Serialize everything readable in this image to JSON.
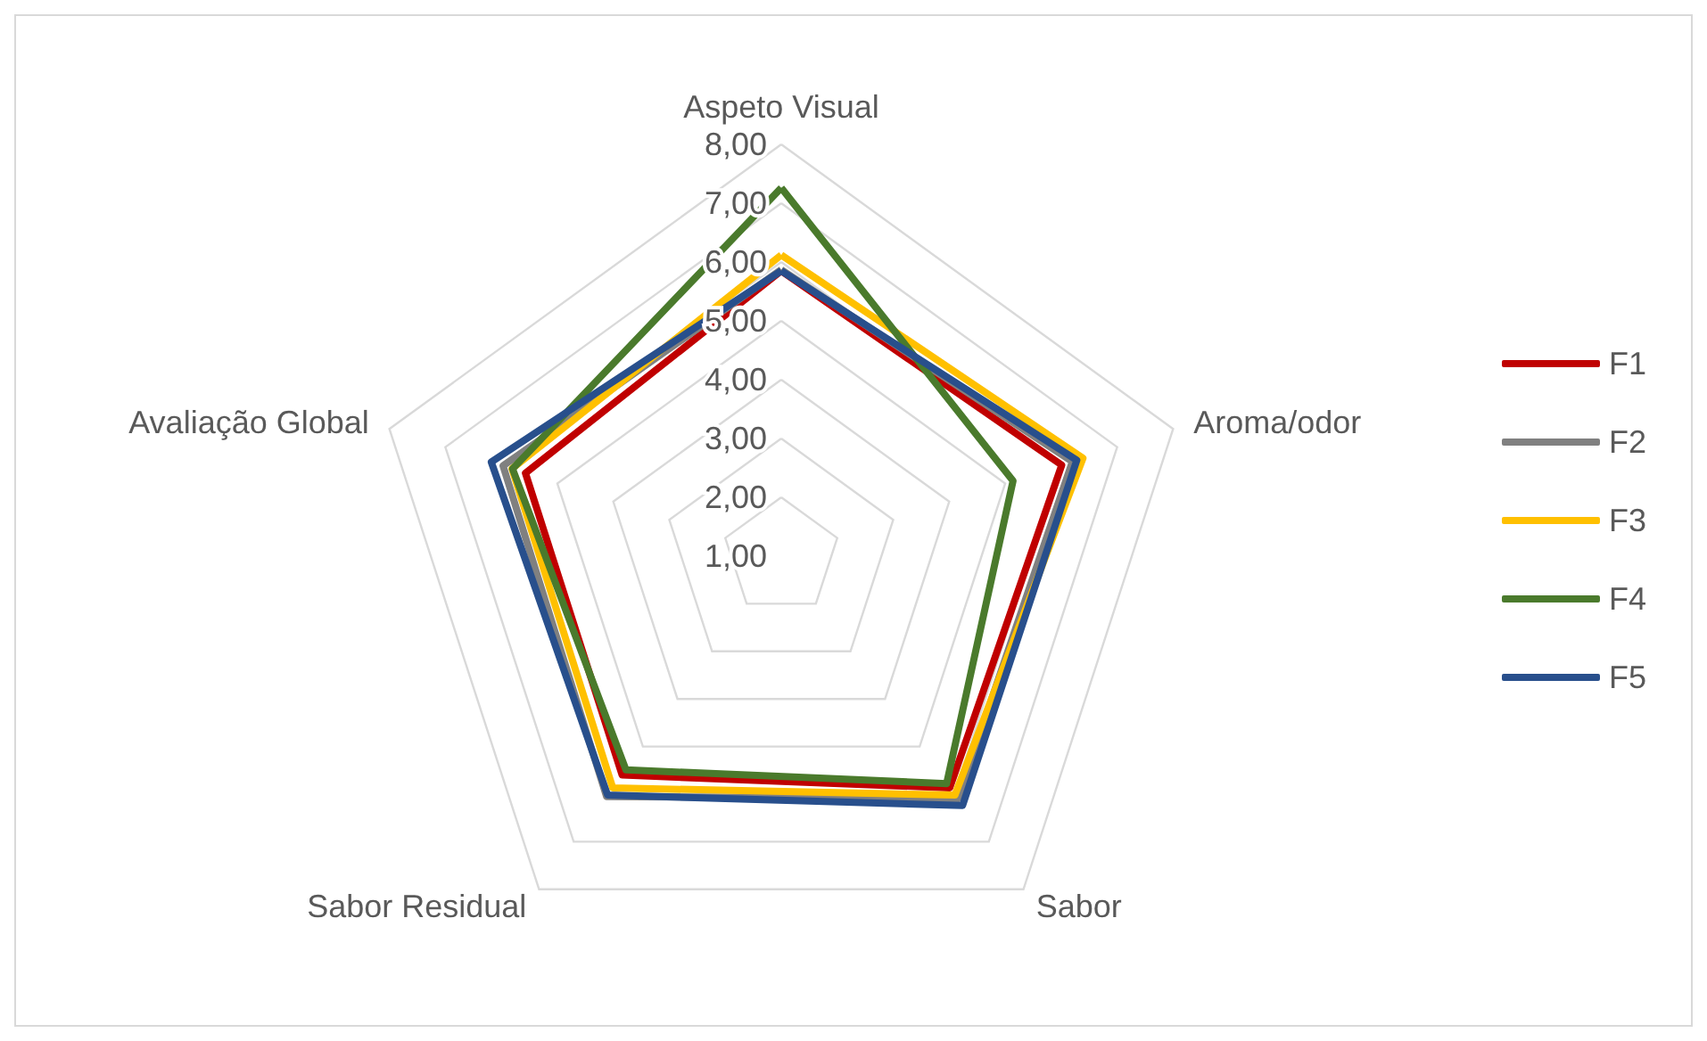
{
  "chart_data": {
    "type": "radar",
    "categories": [
      "Aspeto Visual",
      "Aroma/odor",
      "Sabor",
      "Sabor Residual",
      "Avaliação Global"
    ],
    "series": [
      {
        "name": "F1",
        "color": "#c00000",
        "values": [
          5.85,
          6.01,
          5.87,
          5.6,
          5.57
        ]
      },
      {
        "name": "F2",
        "color": "#808080",
        "values": [
          5.87,
          6.2,
          6.1,
          6.05,
          5.97
        ]
      },
      {
        "name": "F3",
        "color": "#ffc000",
        "values": [
          6.12,
          6.39,
          6.02,
          5.87,
          5.81
        ]
      },
      {
        "name": "F4",
        "color": "#4a7a2c",
        "values": [
          7.26,
          5.14,
          5.78,
          5.49,
          5.8
        ]
      },
      {
        "name": "F5",
        "color": "#284f8c",
        "values": [
          5.85,
          6.28,
          6.24,
          6.02,
          6.18
        ]
      }
    ],
    "ylim": [
      1,
      8
    ],
    "yticks": [
      {
        "value": 1,
        "label": "1,00"
      },
      {
        "value": 2,
        "label": "2,00"
      },
      {
        "value": 3,
        "label": "3,00"
      },
      {
        "value": 4,
        "label": "4,00"
      },
      {
        "value": 5,
        "label": "5,00"
      },
      {
        "value": 6,
        "label": "6,00"
      },
      {
        "value": 7,
        "label": "7,00"
      },
      {
        "value": 8,
        "label": "8,00"
      }
    ],
    "legend": "right",
    "marker": "none",
    "line_style": "solid",
    "grid": true
  }
}
